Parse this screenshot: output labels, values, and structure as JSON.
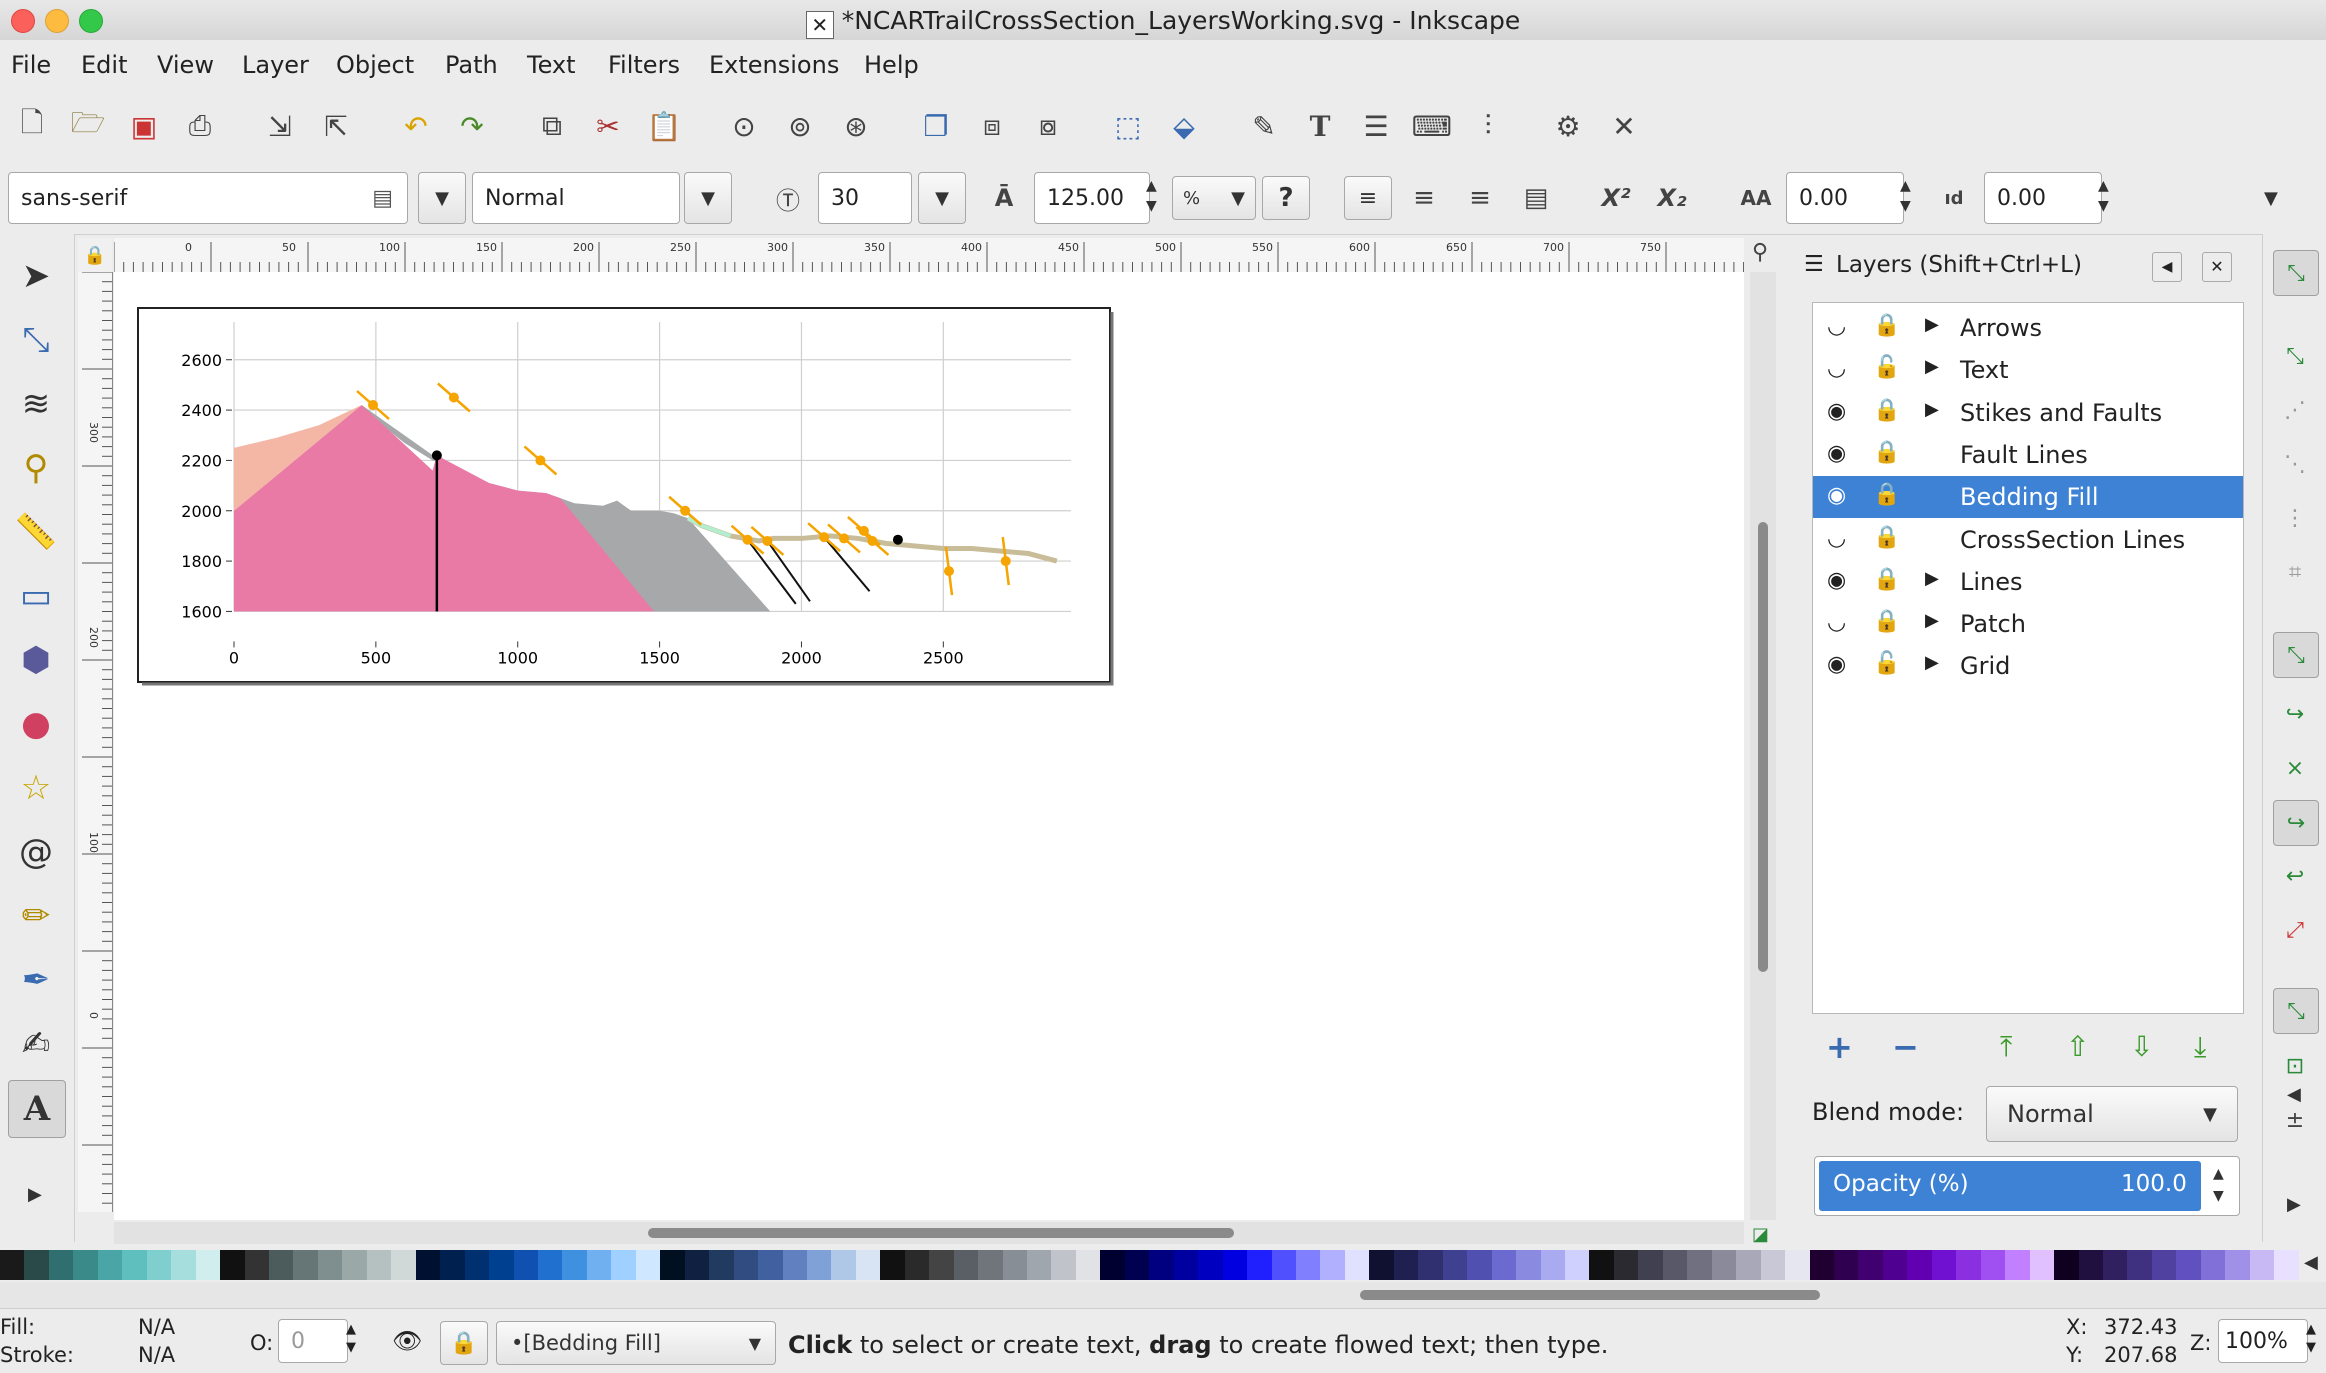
{
  "window": {
    "title": "*NCARTrailCrossSection_LayersWorking.svg - Inkscape"
  },
  "menu": [
    "File",
    "Edit",
    "View",
    "Layer",
    "Object",
    "Path",
    "Text",
    "Filters",
    "Extensions",
    "Help"
  ],
  "text_toolbar": {
    "font_family": "sans-serif",
    "font_style": "Normal",
    "font_size": "30",
    "line_spacing": "125.00",
    "line_spacing_unit": "%",
    "letter_spacing": "0.00",
    "word_spacing": "0.00"
  },
  "ruler": {
    "h_ticks": [
      "50",
      "0",
      "50",
      "100",
      "150",
      "200",
      "250",
      "300",
      "350",
      "400",
      "450",
      "500",
      "550",
      "600",
      "650",
      "700",
      "750"
    ],
    "v_ticks": [
      "300",
      "200",
      "100",
      "0"
    ]
  },
  "chart_data": {
    "type": "line",
    "x_ticks": [
      "0",
      "500",
      "1000",
      "1500",
      "2000",
      "2500"
    ],
    "y_ticks": [
      "2600",
      "2400",
      "2200",
      "2000",
      "1800",
      "1600"
    ],
    "xlim": [
      0,
      2950
    ],
    "ylim": [
      1550,
      2750
    ],
    "grid": true,
    "surface_profile": {
      "x": [
        0,
        150,
        300,
        450,
        500,
        600,
        700,
        800,
        900,
        1000,
        1100,
        1150,
        1200,
        1300,
        1350,
        1400,
        1500,
        1550,
        1600,
        1650,
        1700,
        1750,
        1800,
        1850,
        1900,
        1950,
        2000,
        2100,
        2200,
        2300,
        2400,
        2500,
        2600,
        2700,
        2800,
        2900
      ],
      "y": [
        2250,
        2290,
        2340,
        2420,
        2360,
        2270,
        2200,
        2160,
        2110,
        2080,
        2070,
        2050,
        2030,
        2020,
        2040,
        2000,
        2000,
        1990,
        1970,
        1940,
        1920,
        1900,
        1890,
        1880,
        1890,
        1890,
        1890,
        1900,
        1890,
        1870,
        1860,
        1850,
        1850,
        1840,
        1830,
        1800
      ]
    },
    "fills": [
      {
        "layer": "Bedding Fill (salmon)",
        "color": "#f4b7a6"
      },
      {
        "layer": "Bedding Fill (pink)",
        "color": "#e97aa6"
      },
      {
        "layer": "Bedding Fill (gray)",
        "color": "#a6a8a9"
      }
    ],
    "vertical_line": {
      "x": 715,
      "y_top": 2220,
      "y_bottom": 1600
    },
    "black_points": [
      {
        "x": 715,
        "y": 2220
      },
      {
        "x": 2340,
        "y": 1885
      }
    ],
    "strike_symbols": [
      {
        "x": 490,
        "y": 2420
      },
      {
        "x": 775,
        "y": 2450
      },
      {
        "x": 1080,
        "y": 2200
      },
      {
        "x": 1590,
        "y": 2000
      },
      {
        "x": 1810,
        "y": 1885
      },
      {
        "x": 1880,
        "y": 1880
      },
      {
        "x": 2080,
        "y": 1895
      },
      {
        "x": 2150,
        "y": 1890
      },
      {
        "x": 2220,
        "y": 1920
      },
      {
        "x": 2250,
        "y": 1880
      },
      {
        "x": 2520,
        "y": 1760
      },
      {
        "x": 2720,
        "y": 1800
      }
    ],
    "faults": [
      {
        "x1": 1810,
        "y1": 1885,
        "x2": 1980,
        "y2": 1630
      },
      {
        "x1": 1880,
        "y1": 1880,
        "x2": 2030,
        "y2": 1640
      },
      {
        "x1": 2080,
        "y1": 1895,
        "x2": 2240,
        "y2": 1680
      }
    ]
  },
  "layers_panel": {
    "title": "Layers (Shift+Ctrl+L)",
    "layers": [
      {
        "name": "Arrows",
        "expandable": true
      },
      {
        "name": "Text",
        "expandable": true
      },
      {
        "name": "Stikes and Faults",
        "expandable": true
      },
      {
        "name": "Fault Lines",
        "expandable": false
      },
      {
        "name": "Bedding Fill",
        "expandable": false,
        "selected": true
      },
      {
        "name": "CrossSection Lines",
        "expandable": false
      },
      {
        "name": "Lines",
        "expandable": true
      },
      {
        "name": "Patch",
        "expandable": true
      },
      {
        "name": "Grid",
        "expandable": true
      }
    ],
    "blend_mode_label": "Blend mode:",
    "blend_mode_value": "Normal",
    "opacity_label": "Opacity (%)",
    "opacity_value": "100.0"
  },
  "status": {
    "fill_label": "Fill:",
    "fill_value": "N/A",
    "stroke_label": "Stroke:",
    "stroke_value": "N/A",
    "o_label": "O:",
    "o_value": "0",
    "layer_select": "•[Bedding Fill]",
    "message_bold1": "Click",
    "message_part1": " to select or create text, ",
    "message_bold2": "drag",
    "message_part2": " to create flowed text; then type.",
    "x_label": "X:",
    "x_value": "372.43",
    "y_label": "Y:",
    "y_value": "207.68",
    "z_label": "Z:",
    "zoom": "100%"
  }
}
